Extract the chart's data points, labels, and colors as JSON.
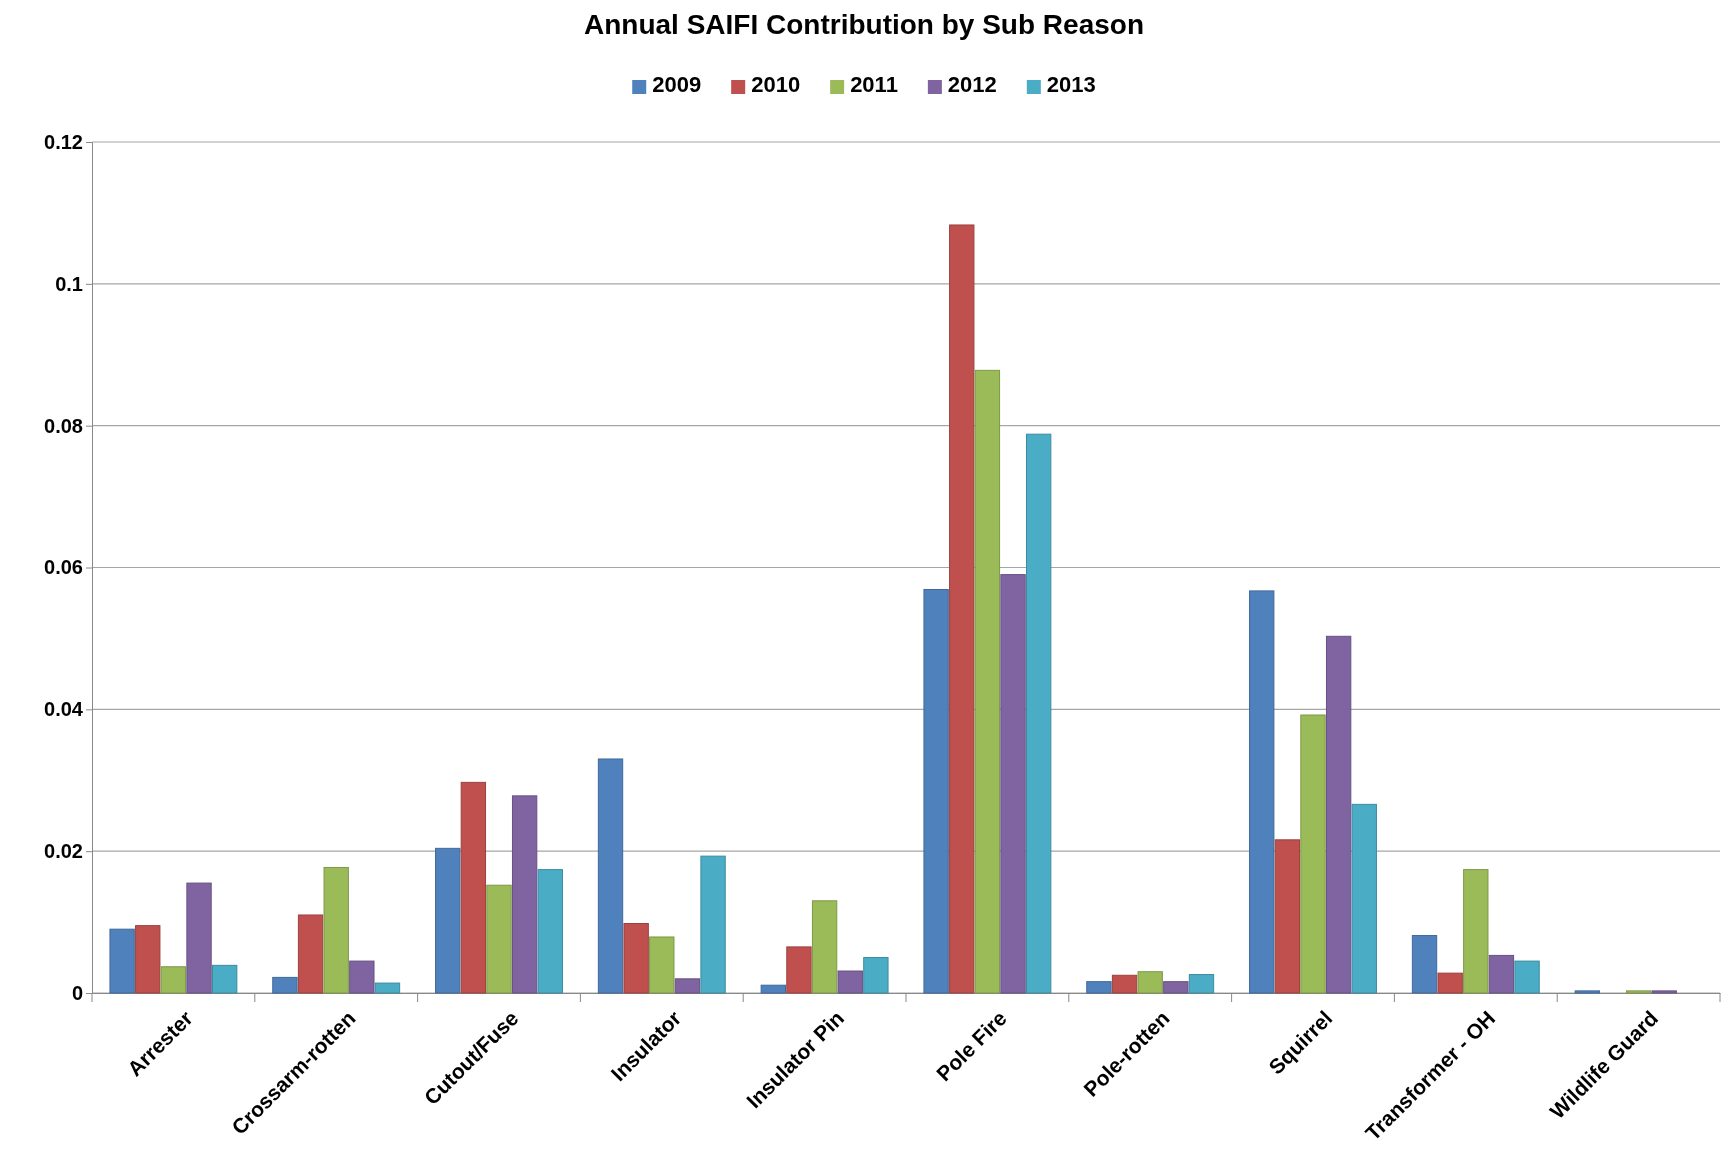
{
  "chart_data": {
    "type": "bar",
    "title": "Annual SAIFI Contribution by Sub Reason",
    "categories": [
      "Arrester",
      "Crossarm-rotten",
      "Cutout/Fuse",
      "Insulator",
      "Insulator Pin",
      "Pole Fire",
      "Pole-rotten",
      "Squirrel",
      "Transformer - OH",
      "Wildlife Guard"
    ],
    "series": [
      {
        "name": "2009",
        "color": "#4f81bd",
        "values": [
          0.009,
          0.0022,
          0.0204,
          0.033,
          0.0011,
          0.0569,
          0.0016,
          0.0567,
          0.0081,
          0.0003
        ]
      },
      {
        "name": "2010",
        "color": "#c0504d",
        "values": [
          0.0095,
          0.011,
          0.0297,
          0.0098,
          0.0065,
          0.1083,
          0.0025,
          0.0216,
          0.0028,
          0
        ]
      },
      {
        "name": "2011",
        "color": "#9bbb59",
        "values": [
          0.0037,
          0.0177,
          0.0152,
          0.0079,
          0.013,
          0.0878,
          0.003,
          0.0392,
          0.0174,
          0.0003
        ]
      },
      {
        "name": "2012",
        "color": "#8064a2",
        "values": [
          0.0155,
          0.0045,
          0.0278,
          0.002,
          0.0031,
          0.059,
          0.0016,
          0.0503,
          0.0053,
          0.0003
        ]
      },
      {
        "name": "2013",
        "color": "#4bacc6",
        "values": [
          0.0039,
          0.0014,
          0.0174,
          0.0193,
          0.005,
          0.0788,
          0.0026,
          0.0266,
          0.0045,
          0
        ]
      }
    ],
    "ylim": [
      0,
      0.12
    ],
    "yticks": [
      0,
      0.02,
      0.04,
      0.06,
      0.08,
      0.1,
      0.12
    ],
    "grid": "y",
    "legend": "top"
  }
}
